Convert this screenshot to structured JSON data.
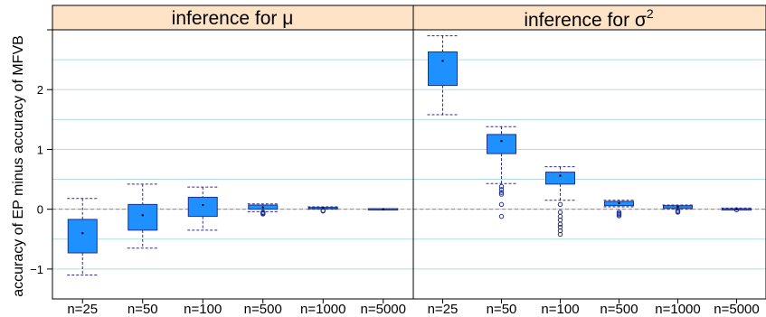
{
  "chart_data": {
    "type": "box",
    "ylabel": "accuracy of EP minus accuracy of MFVB",
    "ylim": [
      -1.5,
      3.0
    ],
    "yticks": [
      -1,
      0,
      1,
      2
    ],
    "ytick_labels": [
      "−1",
      "0",
      "1",
      "2"
    ],
    "grid": "horizontal",
    "reference_line": 0,
    "colors": {
      "box_fill": "#1f90ff",
      "box_edge": "#1f2f8f",
      "whisker": "#2b2b8f",
      "grid": "#b3dde6",
      "ref_line": "#d96a6a",
      "strip_bg": "#ffe3c7"
    },
    "categories": [
      "n=25",
      "n=50",
      "n=100",
      "n=500",
      "n=1000",
      "n=5000"
    ],
    "panels": [
      {
        "title": "inference for μ",
        "title_parts": {
          "main": "inference for μ",
          "sup": ""
        },
        "boxes": [
          {
            "category": "n=25",
            "min": -1.1,
            "q1": -0.73,
            "median": -0.4,
            "q3": -0.17,
            "max": 0.18,
            "outliers": []
          },
          {
            "category": "n=50",
            "min": -0.65,
            "q1": -0.35,
            "median": -0.1,
            "q3": 0.08,
            "max": 0.42,
            "outliers": []
          },
          {
            "category": "n=100",
            "min": -0.35,
            "q1": -0.12,
            "median": 0.07,
            "q3": 0.2,
            "max": 0.37,
            "outliers": []
          },
          {
            "category": "n=500",
            "min": -0.04,
            "q1": 0.0,
            "median": 0.03,
            "q3": 0.07,
            "max": 0.09,
            "outliers": [
              -0.05,
              -0.06,
              -0.07,
              -0.08
            ]
          },
          {
            "category": "n=1000",
            "min": 0.0,
            "q1": 0.01,
            "median": 0.02,
            "q3": 0.03,
            "max": 0.04,
            "outliers": [
              -0.02,
              -0.03
            ]
          },
          {
            "category": "n=5000",
            "min": -0.01,
            "q1": 0.0,
            "median": 0.0,
            "q3": 0.01,
            "max": 0.01,
            "outliers": []
          }
        ]
      },
      {
        "title": "inference for σ2",
        "title_parts": {
          "main": "inference for σ",
          "sup": "2"
        },
        "boxes": [
          {
            "category": "n=25",
            "min": 1.58,
            "q1": 2.07,
            "median": 2.48,
            "q3": 2.63,
            "max": 2.9,
            "outliers": []
          },
          {
            "category": "n=50",
            "min": 0.43,
            "q1": 0.93,
            "median": 1.14,
            "q3": 1.25,
            "max": 1.38,
            "outliers": [
              0.38,
              0.33,
              0.28,
              0.25,
              0.08,
              -0.12
            ]
          },
          {
            "category": "n=100",
            "min": 0.15,
            "q1": 0.42,
            "median": 0.56,
            "q3": 0.62,
            "max": 0.71,
            "outliers": [
              0.08,
              -0.05,
              -0.12,
              -0.18,
              -0.25,
              -0.3,
              -0.36,
              -0.42
            ]
          },
          {
            "category": "n=500",
            "min": 0.04,
            "q1": 0.06,
            "median": 0.1,
            "q3": 0.13,
            "max": 0.15,
            "outliers": [
              -0.05,
              -0.07,
              -0.09,
              -0.11
            ]
          },
          {
            "category": "n=1000",
            "min": 0.0,
            "q1": 0.02,
            "median": 0.04,
            "q3": 0.06,
            "max": 0.07,
            "outliers": [
              -0.02,
              -0.04,
              -0.05
            ]
          },
          {
            "category": "n=5000",
            "min": -0.01,
            "q1": 0.0,
            "median": 0.01,
            "q3": 0.01,
            "max": 0.02,
            "outliers": [
              -0.01
            ]
          }
        ]
      }
    ]
  }
}
